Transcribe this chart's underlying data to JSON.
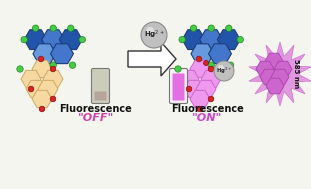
{
  "bg_color": "#f5f5f0",
  "arrow_edge": "#333333",
  "hg_ball_color": "#c0c0c0",
  "hg_ball_edge": "#888888",
  "pillar_blue_dark": "#2255aa",
  "pillar_blue_mid": "#4477cc",
  "pillar_blue_light": "#6699dd",
  "green_dot": "#44cc44",
  "red_dot": "#dd2222",
  "rhodamine_fill": "#f5d9a0",
  "rhodamine_edge": "#ccaa66",
  "pink_fill": "#cc66cc",
  "pink_light": "#ee99ee",
  "pink_star_fill": "#dd88dd",
  "vial_on_color": "#dd44dd",
  "vial_outline": "#777777",
  "fluorescence_label": "Fluorescence",
  "off_label": "\"OFF\"",
  "on_label": "\"ON\"",
  "off_label_color": "#cc44aa",
  "on_label_color": "#cc44cc",
  "nm_label": "585 nm",
  "label_fontsize": 7,
  "off_fontsize": 8,
  "on_fontsize": 8
}
